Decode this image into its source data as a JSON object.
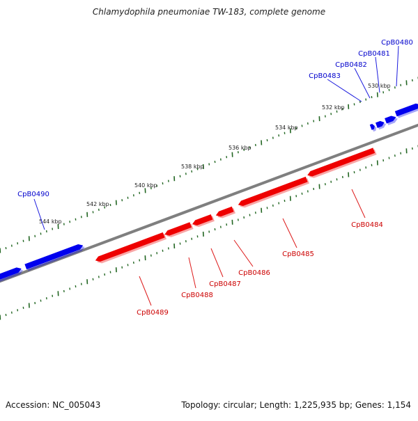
{
  "title": "Chlamydophila pneumoniae TW-183, complete genome",
  "footer": {
    "accession": "Accession: NC_005043",
    "stats": "Topology: circular; Length: 1,225,935 bp; Genes: 1,154"
  },
  "colors": {
    "forward": "#0000ee",
    "reverse": "#ee0000",
    "backbone": "#888888",
    "ticks": "#226622",
    "label_forward": "#0000cc",
    "label_reverse": "#cc0000"
  },
  "scale_labels": [
    "530 kbp",
    "532 kbp",
    "534 kbp",
    "536 kbp",
    "538 kbp",
    "540 kbp",
    "542 kbp",
    "544 kbp"
  ],
  "genes": [
    {
      "name": "CpB0480",
      "strand": "forward"
    },
    {
      "name": "CpB0481",
      "strand": "forward"
    },
    {
      "name": "CpB0482",
      "strand": "forward"
    },
    {
      "name": "CpB0483",
      "strand": "forward"
    },
    {
      "name": "CpB0490",
      "strand": "forward"
    },
    {
      "name": "CpB0484",
      "strand": "reverse"
    },
    {
      "name": "CpB0485",
      "strand": "reverse"
    },
    {
      "name": "CpB0486",
      "strand": "reverse"
    },
    {
      "name": "CpB0487",
      "strand": "reverse"
    },
    {
      "name": "CpB0488",
      "strand": "reverse"
    },
    {
      "name": "CpB0489",
      "strand": "reverse"
    }
  ]
}
